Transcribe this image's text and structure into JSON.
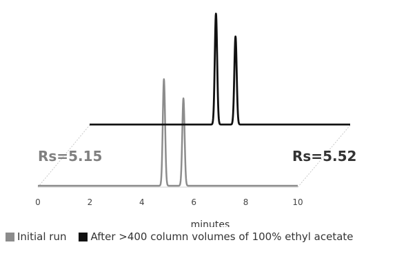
{
  "chart_data": {
    "type": "line",
    "title": "",
    "xlabel": "minutes",
    "ylabel": "",
    "xlim": [
      0,
      10
    ],
    "x_ticks": [
      "0",
      "2",
      "4",
      "6",
      "8",
      "10"
    ],
    "grid": false,
    "legend_position": "bottom",
    "series": [
      {
        "name": "Initial run",
        "color": "#8c8c8c",
        "baseline": 0,
        "peaks": [
          {
            "retention_time": 4.85,
            "height": 100
          },
          {
            "retention_time": 5.6,
            "height": 82
          }
        ],
        "resolution_label": "Rs=5.15"
      },
      {
        "name": "After >400 column volumes of 100% ethyl acetate",
        "color": "#111111",
        "baseline": 0,
        "peaks": [
          {
            "retention_time": 4.85,
            "height": 102
          },
          {
            "retention_time": 5.6,
            "height": 81
          }
        ],
        "resolution_label": "Rs=5.52"
      }
    ]
  }
}
